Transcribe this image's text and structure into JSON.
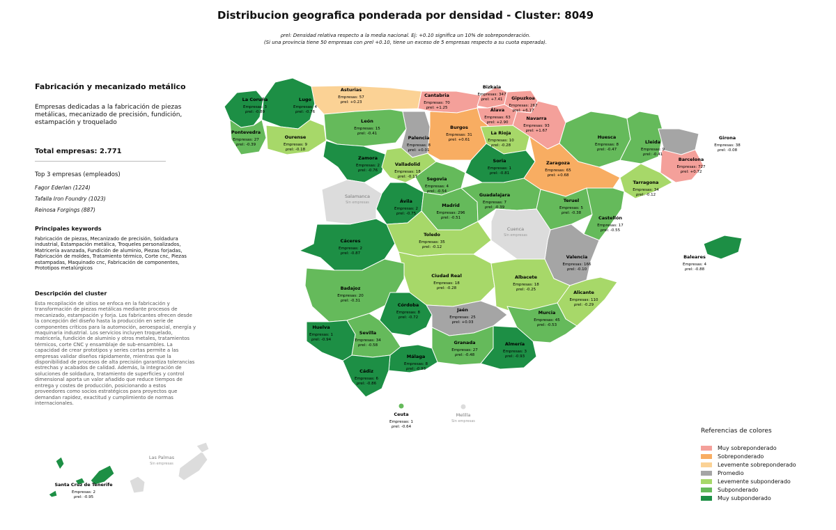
{
  "title": "Distribucion geografica ponderada por densidad - Cluster: 8049",
  "subtitle_line1": "ρrel: Densidad relativa respecto a la media nacional. Ej: +0.10 significa un 10% de sobreponderación.",
  "subtitle_line2": "(Si una provincia tiene 50 empresas con ρrel +0.10, tiene un exceso de 5 empresas respecto a su cuota esperada).",
  "cluster": {
    "name": "Fabricación y mecanizado metálico",
    "summary": "Empresas dedicadas a la fabricación de piezas metálicas, mecanizado de precisión, fundición, estampación y troquelado",
    "total": "Total empresas: 2.771",
    "top3_heading": "Top 3 empresas (empleados)",
    "top3": [
      "Fagor Ederlan (1224)",
      "Tafalla Iron Foundry (1023)",
      "Reinosa Forgings (887)"
    ],
    "keywords_heading": "Principales keywords",
    "keywords": "Fabricación de piezas, Mecanizado de precisión, Soldadura industrial, Estampación metálica, Troqueles personalizados, Matricería avanzada, Fundición de aluminio, Piezas forjadas, Fabricación de moldes, Tratamiento térmico, Corte cnc, Piezas estampadas, Maquinado cnc, Fabricación de componentes, Prototipos metalúrgicos",
    "description_heading": "Descripción del cluster",
    "description": "Esta recopilación de sitios se enfoca en la fabricación y transformación de piezas metálicas mediante procesos de mecanizado, estampación y forja. Los fabricantes ofrecen desde la concepción del diseño hasta la producción en serie de componentes críticos para la automoción, aeroespacial, energía y maquinaria industrial. Los servicios incluyen troquelado, matricería, fundición de aluminio y otros metales, tratamientos térmicos, corte CNC y ensamblaje de sub-ensambles. La capacidad de crear prototipos y series cortas permite a las empresas validar diseños rápidamente, mientras que la disponibilidad de procesos de alta precisión garantiza tolerancias estrechas y acabados de calidad. Además, la integración de soluciones de soldadura, tratamiento de superficies y control dimensional aporta un valor añadido que reduce tiempos de entrega y costes de producción, posicionando a estos proveedores como socios estratégicos para proyectos que demandan rapidez, exactitud y cumplimiento de normas internacionales."
  },
  "legend": {
    "heading": "Referencias de colores",
    "items": [
      {
        "label": "Muy sobreponderado",
        "color": "#f4a09a"
      },
      {
        "label": "Sobreponderado",
        "color": "#f8ad62"
      },
      {
        "label": "Levemente sobreponderado",
        "color": "#fbd295"
      },
      {
        "label": "Promedio",
        "color": "#a5a5a5"
      },
      {
        "label": "Levemente subponderado",
        "color": "#a7d869"
      },
      {
        "label": "Subponderado",
        "color": "#65ba5b"
      },
      {
        "label": "Muy subponderado",
        "color": "#1d8f45"
      }
    ]
  },
  "no_data_color": "#dcdcdc",
  "no_data_label": "Sin empresas",
  "provinces": [
    {
      "name": "La Coruña",
      "count": "Empresas: 3",
      "rho": "ρrel: -0.89",
      "cls": 6
    },
    {
      "name": "Lugo",
      "count": "Empresas: 4",
      "rho": "ρrel: -0.76",
      "cls": 6
    },
    {
      "name": "Asturias",
      "count": "Empresas: 57",
      "rho": "ρrel: +0.23",
      "cls": 2
    },
    {
      "name": "Cantabria",
      "count": "Empresas: 70",
      "rho": "ρrel: +1.25",
      "cls": 0
    },
    {
      "name": "Bizkaia",
      "count": "Empresas: 347",
      "rho": "ρrel: +7.41",
      "cls": 0
    },
    {
      "name": "Gipuzkoa",
      "count": "Empresas: 267",
      "rho": "ρrel: +6.17",
      "cls": 0
    },
    {
      "name": "Álava",
      "count": "Empresas: 63",
      "rho": "ρrel: +2.90",
      "cls": 0
    },
    {
      "name": "Navarra",
      "count": "Empresas: 93",
      "rho": "ρrel: +1.67",
      "cls": 0
    },
    {
      "name": "Pontevedra",
      "count": "Empresas: 27",
      "rho": "ρrel: -0.39",
      "cls": 5
    },
    {
      "name": "Ourense",
      "count": "Empresas: 9",
      "rho": "ρrel: -0.18",
      "cls": 4
    },
    {
      "name": "León",
      "count": "Empresas: 15",
      "rho": "ρrel: -0.41",
      "cls": 5
    },
    {
      "name": "Palencia",
      "count": "Empresas: 8",
      "rho": "ρrel: +0.01",
      "cls": 3
    },
    {
      "name": "Burgos",
      "count": "Empresas: 31",
      "rho": "ρrel: +0.61",
      "cls": 1
    },
    {
      "name": "La Rioja",
      "count": "Empresas: 10",
      "rho": "ρrel: -0.28",
      "cls": 4
    },
    {
      "name": "Huesca",
      "count": "Empresas: 8",
      "rho": "ρrel: -0.47",
      "cls": 5
    },
    {
      "name": "Lleida",
      "count": "Empresas: 9",
      "rho": "ρrel: -0.41",
      "cls": 5
    },
    {
      "name": "Girona",
      "count": "Empresas: 38",
      "rho": "ρrel: -0.08",
      "cls": 3
    },
    {
      "name": "Barcelona",
      "count": "Empresas: 727",
      "rho": "ρrel: +0.72",
      "cls": 0
    },
    {
      "name": "Zamora",
      "count": "Empresas: 2",
      "rho": "ρrel: -0.76",
      "cls": 6
    },
    {
      "name": "Valladolid",
      "count": "Empresas: 18",
      "rho": "ρrel: -0.17",
      "cls": 4
    },
    {
      "name": "Soria",
      "count": "Empresas: 1",
      "rho": "ρrel: -0.81",
      "cls": 6
    },
    {
      "name": "Zaragoza",
      "count": "Empresas: 65",
      "rho": "ρrel: +0.68",
      "cls": 1
    },
    {
      "name": "Tarragona",
      "count": "Empresas: 34",
      "rho": "ρrel: -0.12",
      "cls": 4
    },
    {
      "name": "Segovia",
      "count": "Empresas: 4",
      "rho": "ρrel: -0.54",
      "cls": 5
    },
    {
      "name": "Ávila",
      "count": "Empresas: 2",
      "rho": "ρrel: -0.75",
      "cls": 6
    },
    {
      "name": "Madrid",
      "count": "Empresas: 296",
      "rho": "ρrel: -0.51",
      "cls": 5
    },
    {
      "name": "Guadalajara",
      "count": "Empresas: 7",
      "rho": "ρrel: -0.39",
      "cls": 5
    },
    {
      "name": "Teruel",
      "count": "Empresas: 5",
      "rho": "ρrel: -0.38",
      "cls": 5
    },
    {
      "name": "Castellón",
      "count": "Empresas: 17",
      "rho": "ρrel: -0.55",
      "cls": 5
    },
    {
      "name": "Cáceres",
      "count": "Empresas: 2",
      "rho": "ρrel: -0.87",
      "cls": 6
    },
    {
      "name": "Toledo",
      "count": "Empresas: 35",
      "rho": "ρrel: -0.12",
      "cls": 4
    },
    {
      "name": "Valencia",
      "count": "Empresas: 166",
      "rho": "ρrel: -0.10",
      "cls": 3
    },
    {
      "name": "Ciudad Real",
      "count": "Empresas: 18",
      "rho": "ρrel: -0.28",
      "cls": 4
    },
    {
      "name": "Albacete",
      "count": "Empresas: 18",
      "rho": "ρrel: -0.25",
      "cls": 4
    },
    {
      "name": "Badajoz",
      "count": "Empresas: 20",
      "rho": "ρrel: -0.31",
      "cls": 5
    },
    {
      "name": "Alicante",
      "count": "Empresas: 110",
      "rho": "ρrel: -0.29",
      "cls": 4
    },
    {
      "name": "Córdoba",
      "count": "Empresas: 8",
      "rho": "ρrel: -0.72",
      "cls": 6
    },
    {
      "name": "Jaén",
      "count": "Empresas: 25",
      "rho": "ρrel: +0.03",
      "cls": 3
    },
    {
      "name": "Murcia",
      "count": "Empresas: 45",
      "rho": "ρrel: -0.53",
      "cls": 5
    },
    {
      "name": "Huelva",
      "count": "Empresas: 1",
      "rho": "ρrel: -0.94",
      "cls": 6
    },
    {
      "name": "Sevilla",
      "count": "Empresas: 34",
      "rho": "ρrel: -0.58",
      "cls": 5
    },
    {
      "name": "Granada",
      "count": "Empresas: 27",
      "rho": "ρrel: -0.48",
      "cls": 5
    },
    {
      "name": "Almería",
      "count": "Empresas: 3",
      "rho": "ρrel: -0.93",
      "cls": 6
    },
    {
      "name": "Málaga",
      "count": "Empresas: 8",
      "rho": "ρrel: -0.93",
      "cls": 6
    },
    {
      "name": "Cádiz",
      "count": "Empresas: 6",
      "rho": "ρrel: -0.86",
      "cls": 6
    },
    {
      "name": "Baleares",
      "count": "Empresas: 4",
      "rho": "ρrel: -0.88",
      "cls": 6
    },
    {
      "name": "Ceuta",
      "count": "Empresas: 1",
      "rho": "ρrel: -0.64",
      "cls": 5
    },
    {
      "name": "Santa Cruz de Tenerife",
      "count": "Empresas: 2",
      "rho": "ρrel: -0.95",
      "cls": 6
    }
  ],
  "no_data_provinces": [
    "Salamanca",
    "Cuenca",
    "Melilla",
    "Las Palmas"
  ]
}
